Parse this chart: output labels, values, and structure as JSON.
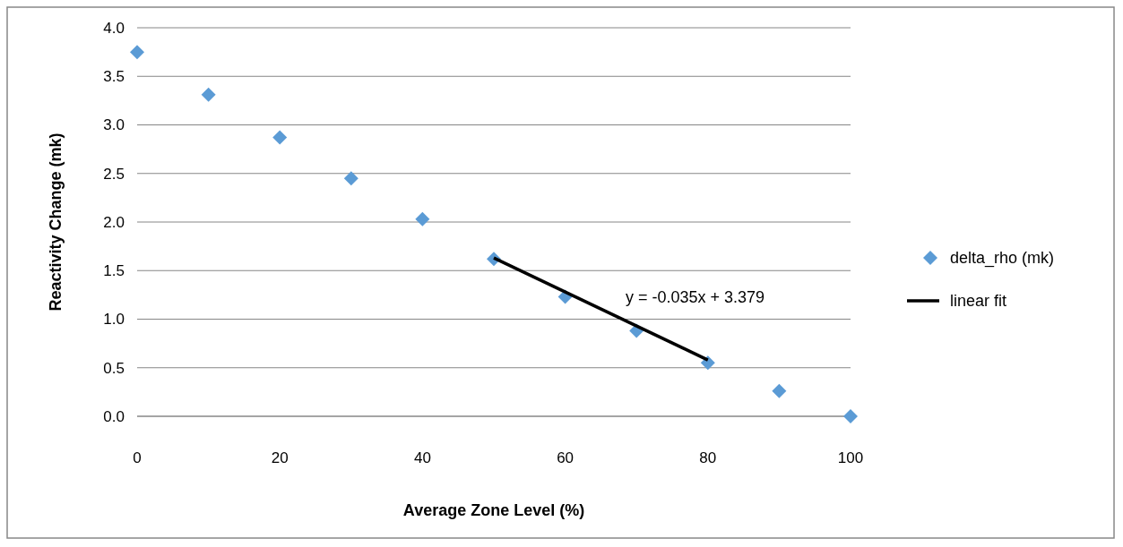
{
  "chart_data": {
    "type": "scatter",
    "xlabel": "Average Zone Level (%)",
    "ylabel": "Reactivity Change (mk)",
    "xlim": [
      0,
      100
    ],
    "xticks": [
      0,
      20,
      40,
      60,
      80,
      100
    ],
    "ylim": [
      0,
      4
    ],
    "yticks": [
      {
        "value": 0,
        "label": "0.0"
      },
      {
        "value": 0.5,
        "label": "0.5"
      },
      {
        "value": 1,
        "label": "1.0"
      },
      {
        "value": 1.5,
        "label": "1.5"
      },
      {
        "value": 2,
        "label": "2.0"
      },
      {
        "value": 2.5,
        "label": "2.5"
      },
      {
        "value": 3,
        "label": "3.0"
      },
      {
        "value": 3.5,
        "label": "3.5"
      },
      {
        "value": 4,
        "label": "4.0"
      }
    ],
    "grid": "y",
    "legend": "right",
    "series": [
      {
        "name": "delta_rho (mk)",
        "marker": "diamond",
        "color": "#5b9bd5",
        "x": [
          0,
          10,
          20,
          30,
          40,
          50,
          60,
          70,
          80,
          90,
          100
        ],
        "values": [
          3.75,
          3.31,
          2.87,
          2.45,
          2.03,
          1.62,
          1.23,
          0.88,
          0.55,
          0.26,
          0.0
        ]
      },
      {
        "name": "linear fit",
        "type": "line",
        "line_style": "solid",
        "color": "#000000",
        "x": [
          50,
          80
        ],
        "values": [
          1.63,
          0.58
        ]
      }
    ],
    "annotations": [
      "y = -0.035x + 3.379"
    ]
  }
}
